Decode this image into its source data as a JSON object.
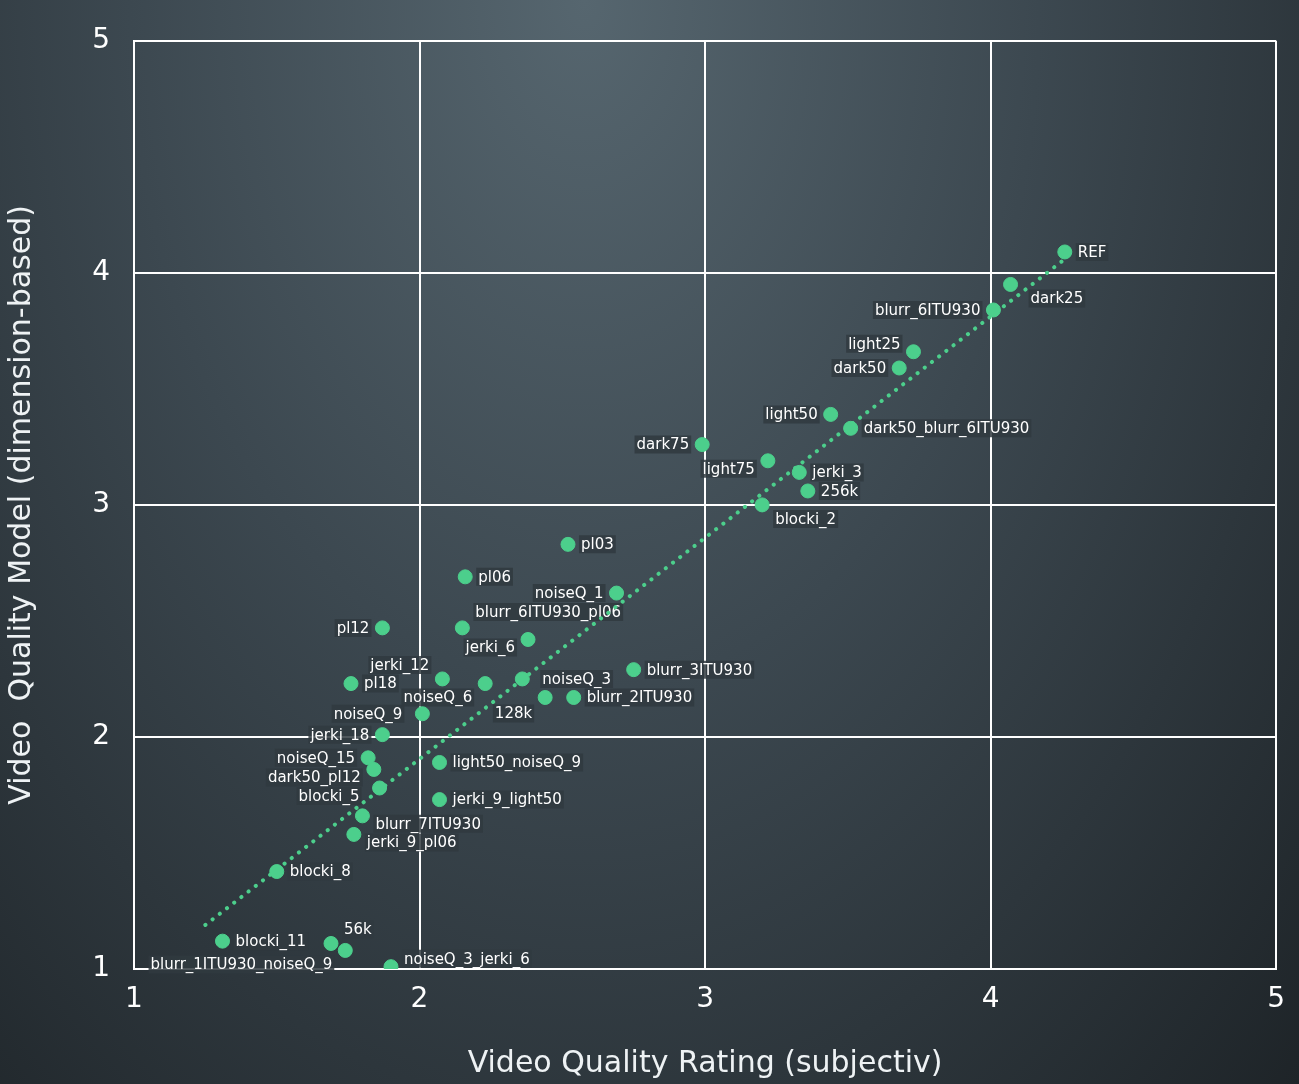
{
  "chart_data": {
    "type": "scatter",
    "xlabel": "Video Quality Rating (subjectiv)",
    "ylabel": "Video  Quality Model (dimension-based)",
    "xlim": [
      1,
      5
    ],
    "ylim": [
      1,
      5
    ],
    "xticks": [
      1,
      2,
      3,
      4,
      5
    ],
    "yticks": [
      1,
      2,
      3,
      4,
      5
    ],
    "grid": true,
    "legend": false,
    "marker": "circle",
    "x": [
      4.26,
      4.07,
      4.01,
      3.73,
      3.68,
      3.44,
      3.51,
      2.99,
      3.22,
      3.33,
      3.36,
      3.2,
      2.52,
      2.16,
      2.69,
      1.87,
      2.15,
      2.38,
      2.75,
      1.76,
      2.08,
      2.23,
      2.36,
      2.44,
      2.54,
      2.01,
      1.87,
      1.82,
      1.84,
      2.07,
      1.86,
      2.07,
      1.8,
      1.77,
      1.5,
      1.31,
      1.69,
      1.74,
      1.9
    ],
    "series": [
      {
        "color": "#4ccf8c",
        "values": [
          4.09,
          3.95,
          3.84,
          3.66,
          3.59,
          3.39,
          3.33,
          3.26,
          3.19,
          3.14,
          3.06,
          3.0,
          2.83,
          2.69,
          2.62,
          2.47,
          2.47,
          2.42,
          2.29,
          2.23,
          2.25,
          2.23,
          2.25,
          2.17,
          2.17,
          2.1,
          2.01,
          1.91,
          1.86,
          1.89,
          1.78,
          1.73,
          1.66,
          1.58,
          1.42,
          1.12,
          1.11,
          1.08,
          1.01
        ]
      },
      {
        "type": "line",
        "color": "#4ccf8c",
        "line_style": "dotted",
        "marker": "none",
        "x": [
          1.25,
          4.25
        ],
        "values": [
          1.19,
          4.05
        ]
      }
    ],
    "annotations": [
      {
        "text": "REF",
        "x": 4.26,
        "y": 4.09
      },
      {
        "text": "dark25",
        "x": 4.07,
        "y": 3.95
      },
      {
        "text": "blurr_6ITU930",
        "x": 4.01,
        "y": 3.84
      },
      {
        "text": "light25",
        "x": 3.73,
        "y": 3.66
      },
      {
        "text": "dark50",
        "x": 3.68,
        "y": 3.59
      },
      {
        "text": "light50",
        "x": 3.44,
        "y": 3.39
      },
      {
        "text": "dark50_blurr_6ITU930",
        "x": 3.51,
        "y": 3.33
      },
      {
        "text": "dark75",
        "x": 2.99,
        "y": 3.26
      },
      {
        "text": "light75",
        "x": 3.22,
        "y": 3.19
      },
      {
        "text": "jerki_3",
        "x": 3.33,
        "y": 3.14
      },
      {
        "text": "256k",
        "x": 3.36,
        "y": 3.06
      },
      {
        "text": "blocki_2",
        "x": 3.2,
        "y": 3.0
      },
      {
        "text": "pl03",
        "x": 2.52,
        "y": 2.83
      },
      {
        "text": "pl06",
        "x": 2.16,
        "y": 2.69
      },
      {
        "text": "noiseQ_1",
        "x": 2.69,
        "y": 2.62
      },
      {
        "text": "pl12",
        "x": 1.87,
        "y": 2.47
      },
      {
        "text": "blurr_6ITU930_pl06",
        "x": 2.15,
        "y": 2.47
      },
      {
        "text": "jerki_6",
        "x": 2.38,
        "y": 2.42
      },
      {
        "text": "blurr_3ITU930",
        "x": 2.75,
        "y": 2.29
      },
      {
        "text": "pl18",
        "x": 1.76,
        "y": 2.23
      },
      {
        "text": "jerki_12",
        "x": 2.08,
        "y": 2.25
      },
      {
        "text": "noiseQ_6",
        "x": 2.23,
        "y": 2.23
      },
      {
        "text": "noiseQ_3",
        "x": 2.36,
        "y": 2.25
      },
      {
        "text": "128k",
        "x": 2.44,
        "y": 2.17
      },
      {
        "text": "blurr_2ITU930",
        "x": 2.54,
        "y": 2.17
      },
      {
        "text": "noiseQ_9",
        "x": 2.01,
        "y": 2.1
      },
      {
        "text": "jerki_18",
        "x": 1.87,
        "y": 2.01
      },
      {
        "text": "noiseQ_15",
        "x": 1.82,
        "y": 1.91
      },
      {
        "text": "dark50_pl12",
        "x": 1.84,
        "y": 1.86
      },
      {
        "text": "light50_noiseQ_9",
        "x": 2.07,
        "y": 1.89
      },
      {
        "text": "blocki_5",
        "x": 1.86,
        "y": 1.78
      },
      {
        "text": "jerki_9_light50",
        "x": 2.07,
        "y": 1.73
      },
      {
        "text": "blurr_7ITU930",
        "x": 1.8,
        "y": 1.66
      },
      {
        "text": "jerki_9_pl06",
        "x": 1.77,
        "y": 1.58
      },
      {
        "text": "blocki_8",
        "x": 1.5,
        "y": 1.42
      },
      {
        "text": "blocki_11",
        "x": 1.31,
        "y": 1.12
      },
      {
        "text": "56k",
        "x": 1.69,
        "y": 1.11
      },
      {
        "text": "blurr_1ITU930_noiseQ_9",
        "x": 1.74,
        "y": 1.08
      },
      {
        "text": "noiseQ_3_jerki_6",
        "x": 1.9,
        "y": 1.01
      }
    ]
  }
}
